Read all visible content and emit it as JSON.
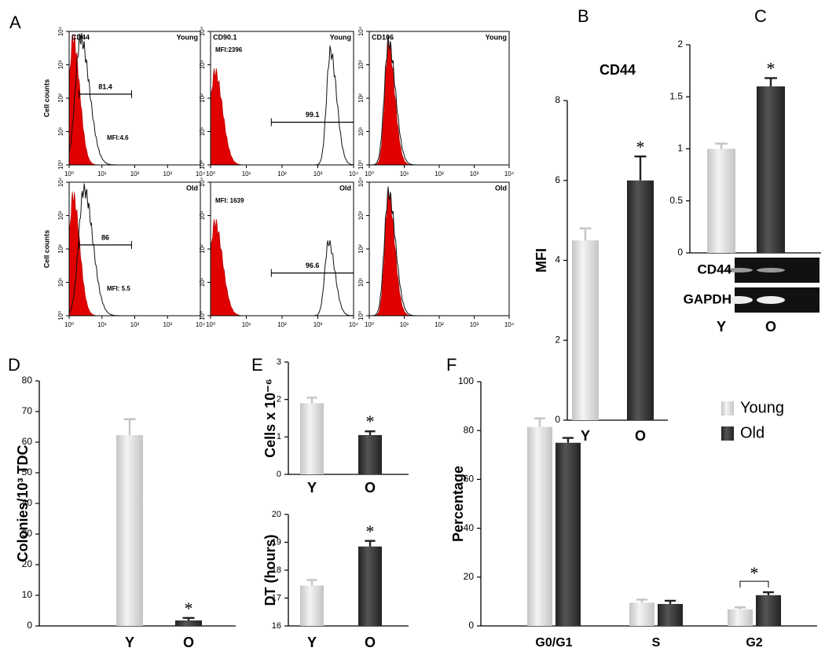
{
  "panel_labels": [
    "A",
    "B",
    "C",
    "D",
    "E",
    "F"
  ],
  "chart_data": [
    {
      "type": "flow",
      "ylabel": "Cell counts",
      "log": true,
      "xlim": [
        1,
        10000
      ],
      "ylim": [
        1,
        10000
      ],
      "xticks": [
        {
          "value": 1,
          "label": "10⁰"
        },
        {
          "value": 10,
          "label": "10¹"
        },
        {
          "value": 100,
          "label": "10²"
        },
        {
          "value": 1000,
          "label": "10³"
        },
        {
          "value": 10000,
          "label": "10⁴"
        }
      ],
      "yticks": [
        {
          "value": 1,
          "label": "10⁰"
        },
        {
          "value": 10,
          "label": "10¹"
        },
        {
          "value": 100,
          "label": "10²"
        },
        {
          "value": 1000,
          "label": "10³"
        },
        {
          "value": 10000,
          "label": "10⁴"
        }
      ],
      "plots": [
        {
          "marker": "CD44",
          "group": "Young",
          "gate_label": "81.4",
          "mfi_label": "MFI:4.6",
          "gate": [
            2,
            80
          ]
        },
        {
          "marker": "CD90.1",
          "group": "Young",
          "gate_label": "99.1",
          "mfi_label": "MFI:2396",
          "gate": [
            50,
            10000
          ]
        },
        {
          "marker": "CD106",
          "group": "Young"
        },
        {
          "group": "Old",
          "gate_label": "86",
          "mfi_label": "MFI: 5.5",
          "gate": [
            2,
            80
          ]
        },
        {
          "group": "Old",
          "gate_label": "96.6",
          "mfi_label": "MFI: 1639",
          "gate": [
            50,
            10000
          ]
        },
        {
          "group": "Old"
        }
      ]
    },
    {
      "type": "bar",
      "title": "CD44",
      "ylabel": "MFI",
      "categories": [
        "Y",
        "O"
      ],
      "values": [
        4.5,
        6.0
      ],
      "errors": [
        0.3,
        0.6
      ],
      "colors": [
        "#c4c4c4",
        "#222222"
      ],
      "ylim": [
        0,
        8
      ],
      "yticks": [
        0,
        2,
        4,
        6,
        8
      ],
      "annotation": "*"
    },
    {
      "type": "bar",
      "categories": [
        "Y",
        "O"
      ],
      "values": [
        1.0,
        1.6
      ],
      "errors": [
        0.05,
        0.08
      ],
      "colors": [
        "#c4c4c4",
        "#222222"
      ],
      "ylim": [
        0,
        2
      ],
      "yticks": [
        0,
        0.5,
        1,
        1.5,
        2
      ],
      "annotation": "*",
      "gel_labels": [
        "CD44",
        "GAPDH"
      ]
    },
    {
      "type": "bar",
      "ylabel": "Colonies/10³ TDC",
      "categories": [
        "Y",
        "O"
      ],
      "values": [
        62.3,
        1.8
      ],
      "errors": [
        5.2,
        0.8
      ],
      "colors": [
        "#c4c4c4",
        "#222222"
      ],
      "ylim": [
        0,
        80
      ],
      "yticks": [
        0,
        10,
        20,
        30,
        40,
        50,
        60,
        70,
        80
      ],
      "annotation": "*"
    },
    {
      "type": "bar",
      "ylabel": "Cells x 10⁻⁶",
      "categories": [
        "Y",
        "O"
      ],
      "values": [
        1.9,
        1.05
      ],
      "errors": [
        0.15,
        0.1
      ],
      "colors": [
        "#c4c4c4",
        "#222222"
      ],
      "ylim": [
        0,
        3
      ],
      "yticks": [
        0,
        1,
        2,
        3
      ],
      "annotation": "*"
    },
    {
      "type": "bar",
      "ylabel": "DT (hours)",
      "categories": [
        "Y",
        "O"
      ],
      "values": [
        17.45,
        18.85
      ],
      "errors": [
        0.2,
        0.2
      ],
      "colors": [
        "#c4c4c4",
        "#222222"
      ],
      "ylim": [
        16,
        20
      ],
      "yticks": [
        16,
        17,
        18,
        19,
        20
      ],
      "annotation": "*"
    },
    {
      "type": "grouped_bar",
      "ylabel": "Percentage",
      "categories": [
        "G0/G1",
        "S",
        "G2"
      ],
      "series": [
        {
          "name": "Young",
          "color": "#c4c4c4",
          "values": [
            81.5,
            9.5,
            6.8
          ],
          "errors": [
            3.5,
            1.3,
            0.8
          ]
        },
        {
          "name": "Old",
          "color": "#222222",
          "values": [
            75,
            9,
            12.6
          ],
          "errors": [
            2,
            1.3,
            1.2
          ]
        }
      ],
      "ylim": [
        0,
        100
      ],
      "yticks": [
        0,
        20,
        40,
        60,
        80,
        100
      ],
      "annotation": "*",
      "legend": "upper right"
    }
  ]
}
